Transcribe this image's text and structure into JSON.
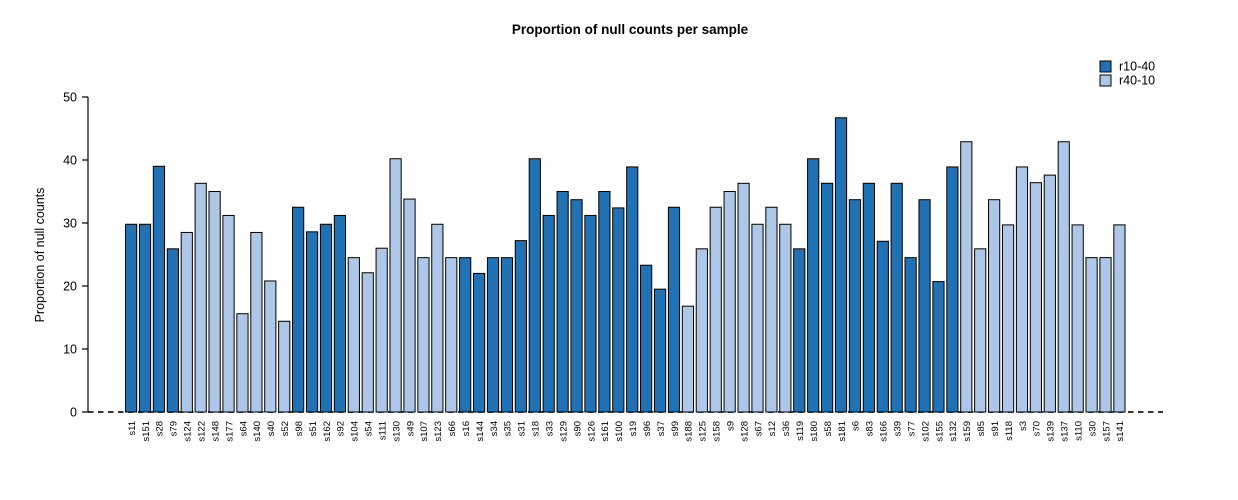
{
  "title": "Proportion of null counts per sample",
  "legend": {
    "items": [
      {
        "label": "r10-40",
        "color": "#2171b5"
      },
      {
        "label": "r40-10",
        "color": "#aec7e8"
      }
    ]
  },
  "chart_data": {
    "type": "bar",
    "title": "Proportion of null counts per sample",
    "xlabel": "",
    "ylabel": "Proportion of null counts",
    "ylim": [
      0,
      50
    ],
    "yticks": [
      0,
      10,
      20,
      30,
      40,
      50
    ],
    "grid": false,
    "legend_position": "top-right",
    "baseline": {
      "y": 0,
      "style": "dashed",
      "color": "#1a1a1a"
    },
    "bar_outline": "#000000",
    "series": [
      {
        "name": "r10-40",
        "color": "#2171b5"
      },
      {
        "name": "r40-10",
        "color": "#aec7e8"
      }
    ],
    "categories": [
      "s11",
      "s151",
      "s28",
      "s79",
      "s124",
      "s122",
      "s148",
      "s177",
      "s64",
      "s140",
      "s40",
      "s52",
      "s98",
      "s51",
      "s162",
      "s92",
      "s104",
      "s54",
      "s111",
      "s130",
      "s49",
      "s107",
      "s123",
      "s66",
      "s16",
      "s144",
      "s34",
      "s35",
      "s31",
      "s18",
      "s33",
      "s129",
      "s90",
      "s126",
      "s161",
      "s100",
      "s19",
      "s96",
      "s37",
      "s99",
      "s188",
      "s125",
      "s158",
      "s9",
      "s128",
      "s67",
      "s12",
      "s36",
      "s119",
      "s180",
      "s58",
      "s181",
      "s6",
      "s83",
      "s166",
      "s39",
      "s77",
      "s102",
      "s155",
      "s132",
      "s159",
      "s85",
      "s91",
      "s118",
      "s3",
      "s70",
      "s139",
      "s137",
      "s110",
      "s30",
      "s157",
      "s141"
    ],
    "groups": [
      "r10-40",
      "r10-40",
      "r10-40",
      "r10-40",
      "r40-10",
      "r40-10",
      "r40-10",
      "r40-10",
      "r40-10",
      "r40-10",
      "r40-10",
      "r40-10",
      "r10-40",
      "r10-40",
      "r10-40",
      "r10-40",
      "r40-10",
      "r40-10",
      "r40-10",
      "r40-10",
      "r40-10",
      "r40-10",
      "r40-10",
      "r40-10",
      "r10-40",
      "r10-40",
      "r10-40",
      "r10-40",
      "r10-40",
      "r10-40",
      "r10-40",
      "r10-40",
      "r10-40",
      "r10-40",
      "r10-40",
      "r10-40",
      "r10-40",
      "r10-40",
      "r10-40",
      "r10-40",
      "r40-10",
      "r40-10",
      "r40-10",
      "r40-10",
      "r40-10",
      "r40-10",
      "r40-10",
      "r40-10",
      "r10-40",
      "r10-40",
      "r10-40",
      "r10-40",
      "r10-40",
      "r10-40",
      "r10-40",
      "r10-40",
      "r10-40",
      "r10-40",
      "r10-40",
      "r10-40",
      "r40-10",
      "r40-10",
      "r40-10",
      "r40-10",
      "r40-10",
      "r40-10",
      "r40-10",
      "r40-10",
      "r40-10",
      "r40-10",
      "r40-10",
      "r40-10"
    ],
    "values": [
      29.8,
      29.8,
      39.0,
      25.9,
      28.5,
      36.3,
      35.0,
      31.2,
      15.6,
      28.5,
      20.8,
      14.4,
      32.5,
      28.6,
      29.8,
      31.2,
      24.5,
      22.1,
      26.0,
      40.2,
      33.8,
      24.5,
      29.8,
      24.5,
      24.5,
      22.0,
      24.5,
      24.5,
      27.2,
      40.2,
      31.2,
      35.0,
      33.7,
      31.2,
      35.0,
      32.4,
      38.9,
      23.3,
      19.5,
      32.5,
      16.8,
      25.9,
      32.5,
      35.0,
      36.3,
      29.8,
      32.5,
      29.8,
      25.9,
      40.2,
      36.3,
      46.7,
      33.7,
      36.3,
      27.1,
      36.3,
      24.5,
      33.7,
      20.7,
      38.9,
      42.9,
      25.9,
      33.7,
      29.7,
      38.9,
      36.4,
      37.6,
      42.9,
      29.7,
      24.5,
      24.5,
      29.7
    ]
  }
}
